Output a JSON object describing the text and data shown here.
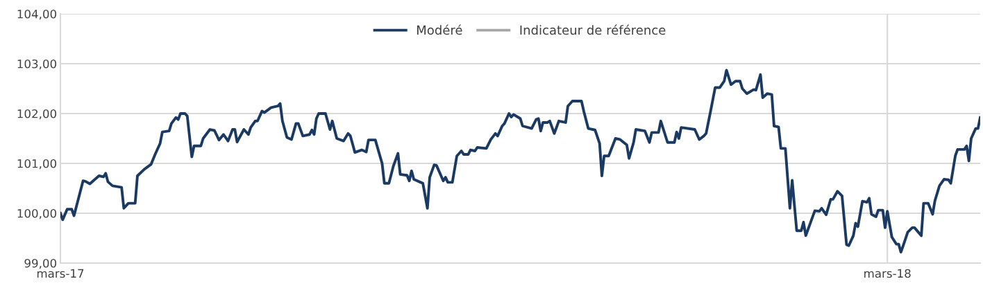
{
  "chart_data": {
    "type": "line",
    "xlim": [
      "2017-03-01",
      "2018-04-11"
    ],
    "xticks": [
      {
        "value": "2017-03-01",
        "label": "mars-17"
      },
      {
        "value": "2018-03-01",
        "label": "mars-18"
      }
    ],
    "ylim": [
      99,
      104
    ],
    "yticks": [
      {
        "value": 99,
        "label": "99,00"
      },
      {
        "value": 100,
        "label": "100,00"
      },
      {
        "value": 101,
        "label": "101,00"
      },
      {
        "value": 102,
        "label": "102,00"
      },
      {
        "value": 103,
        "label": "103,00"
      },
      {
        "value": 104,
        "label": "104,00"
      }
    ],
    "grid": true,
    "legend": "top",
    "line_style": "solid",
    "marker": "none",
    "series": [
      {
        "name": "Modéré",
        "color": "#1a3a63",
        "x": [
          "2017-03-01",
          "2017-03-02",
          "2017-03-04",
          "2017-03-06",
          "2017-03-07",
          "2017-03-09",
          "2017-03-11",
          "2017-03-12",
          "2017-03-14",
          "2017-03-18",
          "2017-03-20",
          "2017-03-21",
          "2017-03-22",
          "2017-03-24",
          "2017-03-28",
          "2017-03-29",
          "2017-03-31",
          "2017-04-03",
          "2017-04-04",
          "2017-04-07",
          "2017-04-10",
          "2017-04-12",
          "2017-04-14",
          "2017-04-15",
          "2017-04-18",
          "2017-04-19",
          "2017-04-21",
          "2017-04-22",
          "2017-04-23",
          "2017-04-25",
          "2017-04-26",
          "2017-04-28",
          "2017-04-29",
          "2017-05-02",
          "2017-05-03",
          "2017-05-06",
          "2017-05-08",
          "2017-05-10",
          "2017-05-12",
          "2017-05-14",
          "2017-05-16",
          "2017-05-17",
          "2017-05-18",
          "2017-05-21",
          "2017-05-23",
          "2017-05-24",
          "2017-05-26",
          "2017-05-27",
          "2017-05-29",
          "2017-05-30",
          "2017-06-02",
          "2017-06-05",
          "2017-06-06",
          "2017-06-07",
          "2017-06-09",
          "2017-06-11",
          "2017-06-13",
          "2017-06-14",
          "2017-06-16",
          "2017-06-19",
          "2017-06-20",
          "2017-06-21",
          "2017-06-22",
          "2017-06-23",
          "2017-06-26",
          "2017-06-28",
          "2017-06-29",
          "2017-07-01",
          "2017-07-04",
          "2017-07-06",
          "2017-07-07",
          "2017-07-09",
          "2017-07-12",
          "2017-07-14",
          "2017-07-15",
          "2017-07-18",
          "2017-07-21",
          "2017-07-22",
          "2017-07-24",
          "2017-07-26",
          "2017-07-28",
          "2017-07-29",
          "2017-08-01",
          "2017-08-02",
          "2017-08-03",
          "2017-08-04",
          "2017-08-07",
          "2017-08-08",
          "2017-08-10",
          "2017-08-11",
          "2017-08-13",
          "2017-08-14",
          "2017-08-17",
          "2017-08-18",
          "2017-08-19",
          "2017-08-21",
          "2017-08-23",
          "2017-08-25",
          "2017-08-26",
          "2017-08-28",
          "2017-08-29",
          "2017-08-31",
          "2017-09-01",
          "2017-09-05",
          "2017-09-07",
          "2017-09-09",
          "2017-09-10",
          "2017-09-12",
          "2017-09-13",
          "2017-09-15",
          "2017-09-16",
          "2017-09-17",
          "2017-09-20",
          "2017-09-21",
          "2017-09-25",
          "2017-09-27",
          "2017-09-28",
          "2017-09-29",
          "2017-09-30",
          "2017-10-02",
          "2017-10-03",
          "2017-10-05",
          "2017-10-07",
          "2017-10-10",
          "2017-10-11",
          "2017-10-13",
          "2017-10-17",
          "2017-10-18",
          "2017-10-20",
          "2017-10-23",
          "2017-10-25",
          "2017-10-26",
          "2017-10-27",
          "2017-10-29",
          "2017-11-01",
          "2017-11-03",
          "2017-11-06",
          "2017-11-07",
          "2017-11-09",
          "2017-11-10",
          "2017-11-14",
          "2017-11-16",
          "2017-11-17",
          "2017-11-20",
          "2017-11-21",
          "2017-11-24",
          "2017-11-27",
          "2017-11-28",
          "2017-11-29",
          "2017-11-30",
          "2017-12-06",
          "2017-12-08",
          "2017-12-10",
          "2017-12-11",
          "2017-12-13",
          "2017-12-15",
          "2017-12-17",
          "2017-12-19",
          "2017-12-20",
          "2017-12-22",
          "2017-12-24",
          "2017-12-26",
          "2017-12-27",
          "2017-12-29",
          "2018-01-01",
          "2018-01-02",
          "2018-01-04",
          "2018-01-05",
          "2018-01-07",
          "2018-01-09",
          "2018-01-10",
          "2018-01-12",
          "2018-01-13",
          "2018-01-15",
          "2018-01-17",
          "2018-01-18",
          "2018-01-20",
          "2018-01-22",
          "2018-01-23",
          "2018-01-24",
          "2018-01-26",
          "2018-01-28",
          "2018-01-30",
          "2018-01-31",
          "2018-02-02",
          "2018-02-04",
          "2018-02-05",
          "2018-02-07",
          "2018-02-09",
          "2018-02-11",
          "2018-02-12",
          "2018-02-14",
          "2018-02-15",
          "2018-02-16",
          "2018-02-18",
          "2018-02-20",
          "2018-02-21",
          "2018-02-22",
          "2018-02-24",
          "2018-02-25",
          "2018-02-27",
          "2018-02-28",
          "2018-03-01",
          "2018-03-03",
          "2018-03-05",
          "2018-03-06",
          "2018-03-07",
          "2018-03-08",
          "2018-03-10",
          "2018-03-12",
          "2018-03-13",
          "2018-03-16",
          "2018-03-17",
          "2018-03-19",
          "2018-03-21",
          "2018-03-22",
          "2018-03-24",
          "2018-03-26",
          "2018-03-28",
          "2018-03-29",
          "2018-03-31",
          "2018-04-01",
          "2018-04-04",
          "2018-04-05",
          "2018-04-06",
          "2018-04-07",
          "2018-04-09",
          "2018-04-10",
          "2018-04-11"
        ],
        "values": [
          100.0,
          99.87,
          100.08,
          100.08,
          99.95,
          100.3,
          100.65,
          100.64,
          100.59,
          100.75,
          100.73,
          100.8,
          100.63,
          100.55,
          100.52,
          100.1,
          100.2,
          100.2,
          100.75,
          100.88,
          100.98,
          101.2,
          101.4,
          101.63,
          101.65,
          101.8,
          101.92,
          101.88,
          102.0,
          102.0,
          101.95,
          101.13,
          101.35,
          101.35,
          101.5,
          101.68,
          101.66,
          101.47,
          101.58,
          101.45,
          101.68,
          101.68,
          101.43,
          101.68,
          101.58,
          101.72,
          101.85,
          101.85,
          102.05,
          102.02,
          102.12,
          102.15,
          102.2,
          101.85,
          101.52,
          101.48,
          101.8,
          101.8,
          101.55,
          101.58,
          101.67,
          101.58,
          101.9,
          102.0,
          102.0,
          101.68,
          101.85,
          101.5,
          101.45,
          101.6,
          101.55,
          101.22,
          101.27,
          101.23,
          101.47,
          101.47,
          101.0,
          100.6,
          100.6,
          100.95,
          101.2,
          100.78,
          100.76,
          100.65,
          100.85,
          100.68,
          100.62,
          100.6,
          100.1,
          100.72,
          100.97,
          100.96,
          100.65,
          100.72,
          100.62,
          100.62,
          101.15,
          101.25,
          101.18,
          101.18,
          101.27,
          101.25,
          101.32,
          101.3,
          101.48,
          101.6,
          101.55,
          101.75,
          101.8,
          102.0,
          101.93,
          101.98,
          101.9,
          101.75,
          101.7,
          101.88,
          101.9,
          101.65,
          101.82,
          101.82,
          101.85,
          101.6,
          101.85,
          101.82,
          102.15,
          102.25,
          102.25,
          102.05,
          101.7,
          101.67,
          101.4,
          100.75,
          101.15,
          101.15,
          101.5,
          101.48,
          101.37,
          101.1,
          101.42,
          101.68,
          101.65,
          101.42,
          101.62,
          101.62,
          101.85,
          101.42,
          101.42,
          101.63,
          101.5,
          101.72,
          101.68,
          101.48,
          101.55,
          101.6,
          102.05,
          102.52,
          102.52,
          102.65,
          102.87,
          102.58,
          102.65,
          102.65,
          102.5,
          102.4,
          102.48,
          102.47,
          102.78,
          102.32,
          102.4,
          102.38,
          101.75,
          101.73,
          101.3,
          101.3,
          100.1,
          100.66,
          99.65,
          99.65,
          99.82,
          99.55,
          99.8,
          100.05,
          100.04,
          100.1,
          99.97,
          100.28,
          100.28,
          100.44,
          100.35,
          99.37,
          99.35,
          99.55,
          99.8,
          99.73,
          100.24,
          100.22,
          100.3,
          99.98,
          99.93,
          100.06,
          100.06,
          99.71,
          100.04,
          99.52,
          99.38,
          99.38,
          99.22,
          99.35,
          99.62,
          99.71,
          99.71,
          99.55,
          100.2,
          100.2,
          99.98,
          100.25,
          100.55,
          100.68,
          100.67,
          100.6,
          101.15,
          101.28,
          101.28,
          101.35,
          101.05,
          101.5,
          101.7,
          101.7,
          101.92
        ]
      },
      {
        "name": "Indicateur de référence",
        "color": "#a6a6a6"
      }
    ]
  }
}
